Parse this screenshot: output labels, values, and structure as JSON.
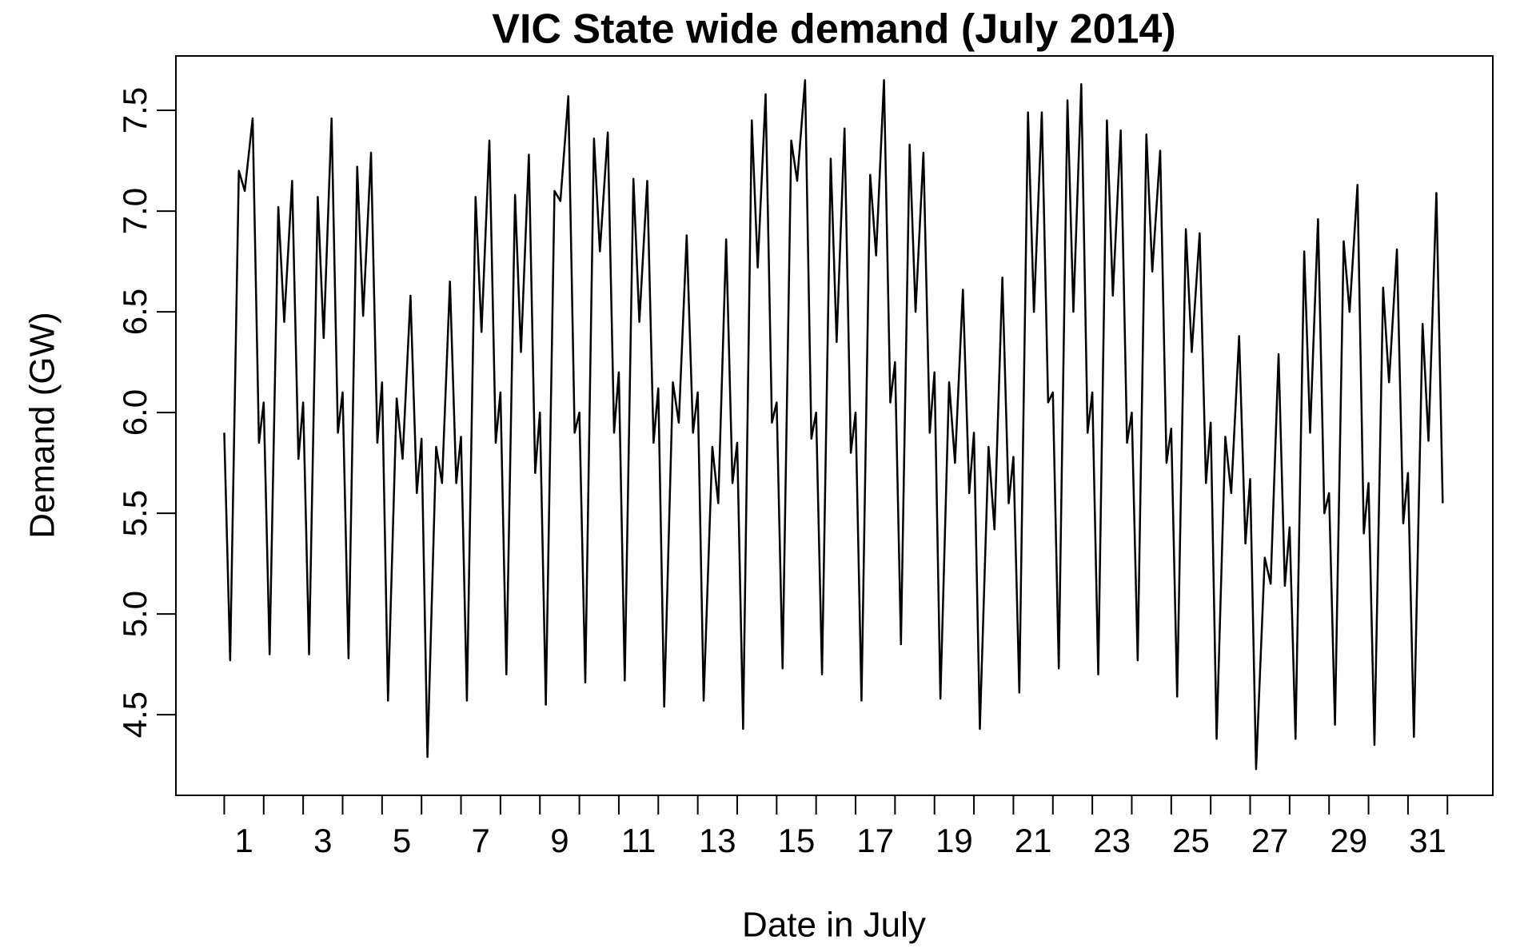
{
  "chart_data": {
    "type": "line",
    "title": "VIC State wide demand (July 2014)",
    "x_label": "Date in July",
    "y_label": "Demand (GW)",
    "color": "#000000",
    "xlim": [
      -0.725,
      32.65
    ],
    "ylim": [
      4.1,
      7.77
    ],
    "xticks": [
      1,
      3,
      5,
      7,
      9,
      11,
      13,
      15,
      17,
      19,
      21,
      23,
      25,
      27,
      29,
      31
    ],
    "x_minor_ticks": [
      0.5,
      1.5,
      2.5,
      3.5,
      4.5,
      5.5,
      6.5,
      7.5,
      8.5,
      9.5,
      10.5,
      11.5,
      12.5,
      13.5,
      14.5,
      15.5,
      16.5,
      17.5,
      18.5,
      19.5,
      20.5,
      21.5,
      22.5,
      23.5,
      24.5,
      25.5,
      26.5,
      27.5,
      28.5,
      29.5,
      30.5,
      31.5
    ],
    "yticks": [
      {
        "value": 4.5,
        "label": "4.5"
      },
      {
        "value": 5,
        "label": "5.0"
      },
      {
        "value": 5.5,
        "label": "5.5"
      },
      {
        "value": 6,
        "label": "6.0"
      },
      {
        "value": 6.5,
        "label": "6.5"
      },
      {
        "value": 7,
        "label": "7.0"
      },
      {
        "value": 7.5,
        "label": "7.5"
      }
    ],
    "x": [
      0.5,
      0.65,
      0.87,
      1.02,
      1.22,
      1.38,
      1.5,
      1.65,
      1.87,
      2.02,
      2.22,
      2.38,
      2.5,
      2.65,
      2.87,
      3.02,
      3.22,
      3.38,
      3.5,
      3.65,
      3.87,
      4.02,
      4.22,
      4.38,
      4.5,
      4.65,
      4.87,
      5.02,
      5.22,
      5.38,
      5.5,
      5.65,
      5.87,
      6.02,
      6.22,
      6.38,
      6.5,
      6.65,
      6.87,
      7.02,
      7.22,
      7.38,
      7.5,
      7.65,
      7.87,
      8.02,
      8.22,
      8.38,
      8.5,
      8.65,
      8.87,
      9.02,
      9.22,
      9.38,
      9.5,
      9.65,
      9.87,
      10.02,
      10.22,
      10.38,
      10.5,
      10.65,
      10.87,
      11.02,
      11.22,
      11.38,
      11.5,
      11.65,
      11.87,
      12.02,
      12.22,
      12.38,
      12.5,
      12.65,
      12.87,
      13.02,
      13.22,
      13.38,
      13.5,
      13.65,
      13.87,
      14.02,
      14.22,
      14.38,
      14.5,
      14.65,
      14.87,
      15.02,
      15.22,
      15.38,
      15.5,
      15.65,
      15.87,
      16.02,
      16.22,
      16.38,
      16.5,
      16.65,
      16.87,
      17.02,
      17.22,
      17.38,
      17.5,
      17.65,
      17.87,
      18.02,
      18.22,
      18.38,
      18.5,
      18.65,
      18.87,
      19.02,
      19.22,
      19.38,
      19.5,
      19.65,
      19.87,
      20.02,
      20.22,
      20.38,
      20.5,
      20.65,
      20.87,
      21.02,
      21.22,
      21.38,
      21.5,
      21.65,
      21.87,
      22.02,
      22.22,
      22.38,
      22.5,
      22.65,
      22.87,
      23.02,
      23.22,
      23.38,
      23.5,
      23.65,
      23.87,
      24.02,
      24.22,
      24.38,
      24.5,
      24.65,
      24.87,
      25.02,
      25.22,
      25.38,
      25.5,
      25.65,
      25.87,
      26.02,
      26.22,
      26.38,
      26.5,
      26.65,
      26.87,
      27.02,
      27.22,
      27.38,
      27.5,
      27.65,
      27.87,
      28.02,
      28.22,
      28.38,
      28.5,
      28.65,
      28.87,
      29.02,
      29.22,
      29.38,
      29.5,
      29.65,
      29.87,
      30.02,
      30.22,
      30.38,
      30.5,
      30.65,
      30.87,
      31.02,
      31.22,
      31.38
    ],
    "values": [
      5.9,
      4.77,
      7.2,
      7.1,
      7.46,
      5.85,
      6.05,
      4.8,
      7.02,
      6.45,
      7.15,
      5.77,
      6.05,
      4.8,
      7.07,
      6.37,
      7.46,
      5.9,
      6.1,
      4.78,
      7.22,
      6.48,
      7.29,
      5.85,
      6.15,
      4.57,
      6.07,
      5.77,
      6.58,
      5.6,
      5.87,
      4.29,
      5.83,
      5.65,
      6.65,
      5.65,
      5.88,
      4.57,
      7.07,
      6.4,
      7.35,
      5.85,
      6.1,
      4.7,
      7.08,
      6.3,
      7.28,
      5.7,
      6.0,
      4.55,
      7.1,
      7.05,
      7.57,
      5.9,
      6.0,
      4.66,
      7.36,
      6.8,
      7.39,
      5.9,
      6.2,
      4.67,
      7.16,
      6.45,
      7.15,
      5.85,
      6.12,
      4.54,
      6.15,
      5.95,
      6.88,
      5.9,
      6.1,
      4.57,
      5.83,
      5.55,
      6.86,
      5.65,
      5.85,
      4.43,
      7.45,
      6.72,
      7.58,
      5.95,
      6.05,
      4.73,
      7.35,
      7.15,
      7.65,
      5.87,
      6.0,
      4.7,
      7.26,
      6.35,
      7.41,
      5.8,
      6.0,
      4.57,
      7.18,
      6.78,
      7.65,
      6.05,
      6.25,
      4.85,
      7.33,
      6.5,
      7.29,
      5.9,
      6.2,
      4.58,
      6.15,
      5.75,
      6.61,
      5.6,
      5.9,
      4.43,
      5.83,
      5.42,
      6.67,
      5.55,
      5.78,
      4.61,
      7.49,
      6.5,
      7.49,
      6.05,
      6.1,
      4.73,
      7.55,
      6.5,
      7.63,
      5.9,
      6.1,
      4.7,
      7.45,
      6.58,
      7.4,
      5.85,
      6.0,
      4.77,
      7.38,
      6.7,
      7.3,
      5.75,
      5.92,
      4.59,
      6.91,
      6.3,
      6.89,
      5.65,
      5.95,
      4.38,
      5.88,
      5.6,
      6.38,
      5.35,
      5.67,
      4.23,
      5.28,
      5.15,
      6.29,
      5.14,
      5.43,
      4.38,
      6.8,
      5.9,
      6.96,
      5.5,
      5.6,
      4.45,
      6.85,
      6.5,
      7.13,
      5.4,
      5.65,
      4.35,
      6.62,
      6.15,
      6.81,
      5.45,
      5.7,
      4.39,
      6.44,
      5.86,
      7.09,
      5.55
    ]
  }
}
